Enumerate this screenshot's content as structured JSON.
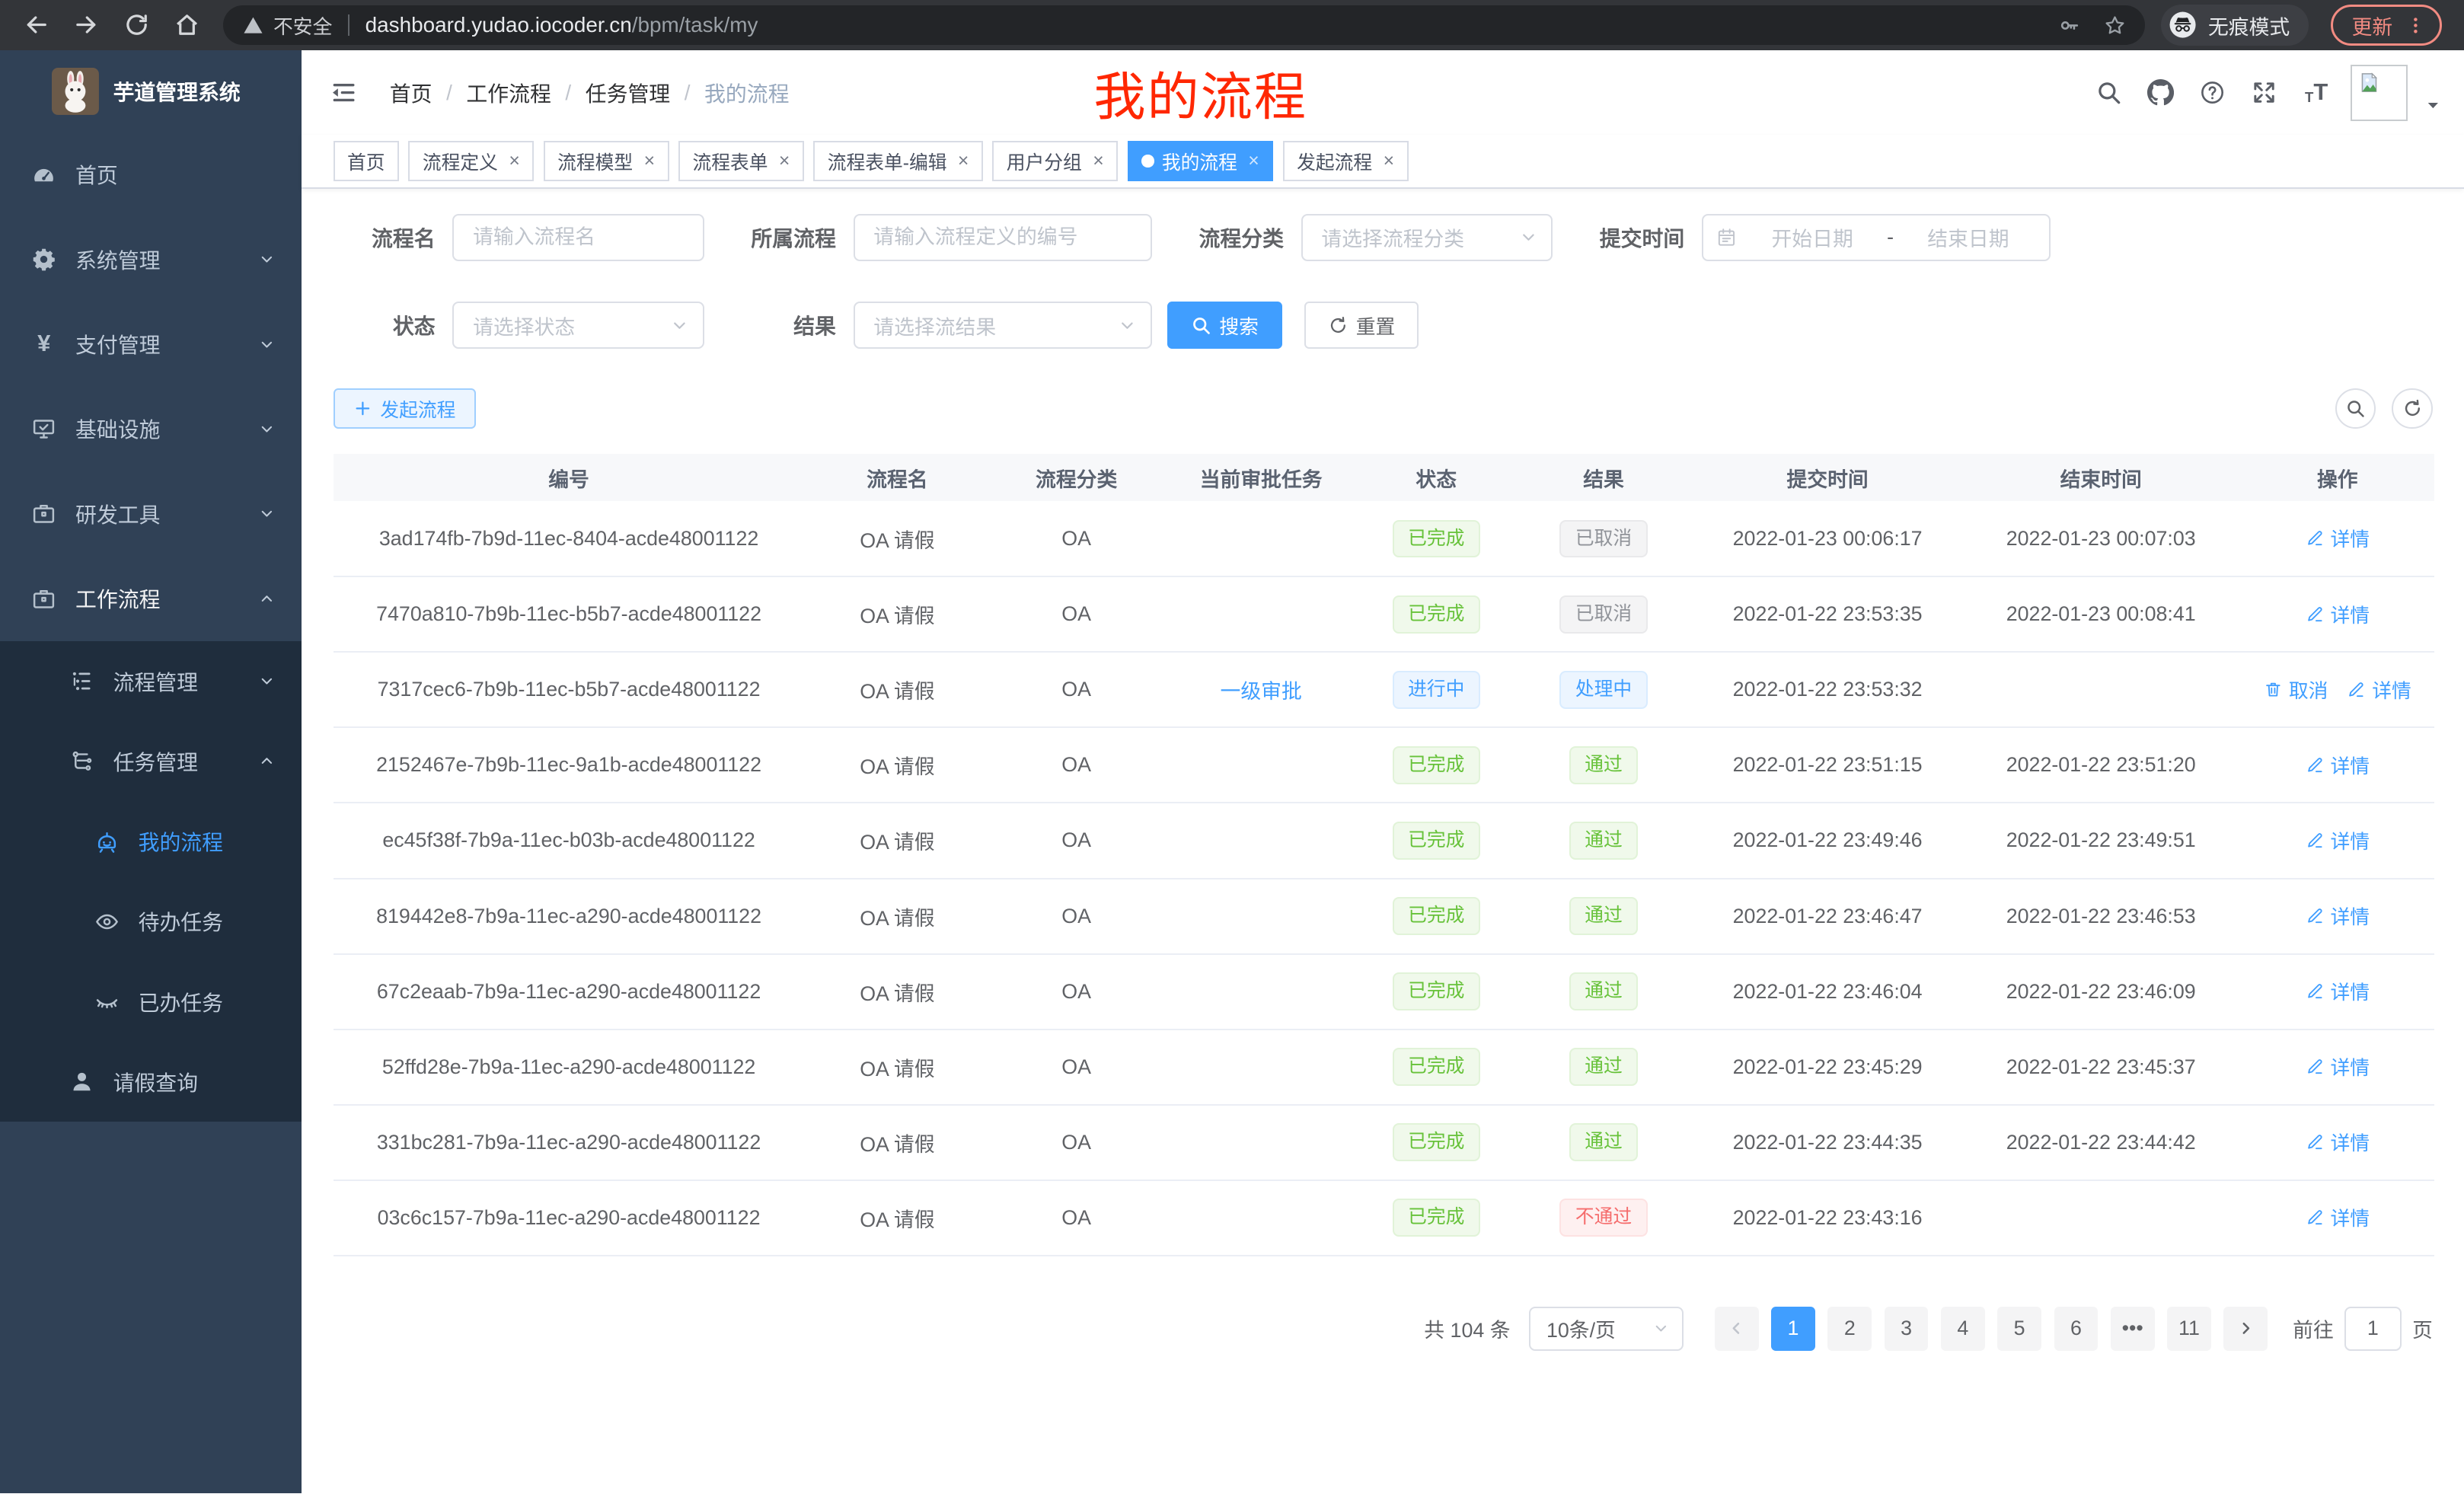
{
  "browser": {
    "security_label": "不安全",
    "url_host": "dashboard.yudao.iocoder.cn",
    "url_path": "/bpm/task/my",
    "incognito_label": "无痕模式",
    "update_label": "更新"
  },
  "sidebar": {
    "app_title": "芋道管理系统",
    "menu": [
      {
        "key": "home",
        "label": "首页",
        "icon": "gauge",
        "level": 1
      },
      {
        "key": "system",
        "label": "系统管理",
        "icon": "gear",
        "level": 1,
        "chevron": "down"
      },
      {
        "key": "payment",
        "label": "支付管理",
        "icon": "yen",
        "level": 1,
        "chevron": "down"
      },
      {
        "key": "infrastructure",
        "label": "基础设施",
        "icon": "monitor",
        "level": 1,
        "chevron": "down"
      },
      {
        "key": "dev-tools",
        "label": "研发工具",
        "icon": "toolbox",
        "level": 1,
        "chevron": "down"
      },
      {
        "key": "workflow",
        "label": "工作流程",
        "icon": "toolbox",
        "level": 1,
        "chevron": "up",
        "active_parent": true
      },
      {
        "key": "process-mgmt",
        "label": "流程管理",
        "icon": "list",
        "level": 2,
        "chevron": "down",
        "submenu": true
      },
      {
        "key": "task-mgmt",
        "label": "任务管理",
        "icon": "flow",
        "level": 2,
        "chevron": "up",
        "submenu": true
      },
      {
        "key": "my-process",
        "label": "我的流程",
        "icon": "robot",
        "level": 3,
        "active": true,
        "submenu": true
      },
      {
        "key": "todo-tasks",
        "label": "待办任务",
        "icon": "eye",
        "level": 3,
        "submenu": true
      },
      {
        "key": "done-tasks",
        "label": "已办任务",
        "icon": "eye-closed",
        "level": 3,
        "submenu": true
      },
      {
        "key": "leave-query",
        "label": "请假查询",
        "icon": "user",
        "level": 2,
        "submenu": true
      }
    ]
  },
  "header": {
    "breadcrumb": [
      "首页",
      "工作流程",
      "任务管理",
      "我的流程"
    ],
    "annotation": "我的流程"
  },
  "tabs": [
    {
      "key": "home",
      "label": "首页",
      "closable": false,
      "active": false
    },
    {
      "key": "process-definition",
      "label": "流程定义",
      "closable": true,
      "active": false
    },
    {
      "key": "process-model",
      "label": "流程模型",
      "closable": true,
      "active": false
    },
    {
      "key": "process-form",
      "label": "流程表单",
      "closable": true,
      "active": false
    },
    {
      "key": "process-form-edit",
      "label": "流程表单-编辑",
      "closable": true,
      "active": false
    },
    {
      "key": "user-group",
      "label": "用户分组",
      "closable": true,
      "active": false
    },
    {
      "key": "my-process",
      "label": "我的流程",
      "closable": true,
      "active": true
    },
    {
      "key": "start-process",
      "label": "发起流程",
      "closable": true,
      "active": false
    }
  ],
  "filters": {
    "name": {
      "label": "流程名",
      "placeholder": "请输入流程名"
    },
    "process": {
      "label": "所属流程",
      "placeholder": "请输入流程定义的编号"
    },
    "category": {
      "label": "流程分类",
      "placeholder": "请选择流程分类"
    },
    "submit_time": {
      "label": "提交时间",
      "start_placeholder": "开始日期",
      "separator": "-",
      "end_placeholder": "结束日期"
    },
    "status": {
      "label": "状态",
      "placeholder": "请选择状态"
    },
    "result": {
      "label": "结果",
      "placeholder": "请选择流结果"
    },
    "search_button": "搜索",
    "reset_button": "重置"
  },
  "toolbar": {
    "create_button": "发起流程"
  },
  "table": {
    "columns": [
      "编号",
      "流程名",
      "流程分类",
      "当前审批任务",
      "状态",
      "结果",
      "提交时间",
      "结束时间",
      "操作"
    ],
    "action_labels": {
      "detail": "详情",
      "cancel": "取消"
    },
    "rows": [
      {
        "id": "3ad174fb-7b9d-11ec-8404-acde48001122",
        "name": "OA 请假",
        "category": "OA",
        "task": "",
        "status": {
          "text": "已完成",
          "type": "success"
        },
        "result": {
          "text": "已取消",
          "type": "info"
        },
        "submit_time": "2022-01-23 00:06:17",
        "end_time": "2022-01-23 00:07:03",
        "actions": [
          "detail"
        ]
      },
      {
        "id": "7470a810-7b9b-11ec-b5b7-acde48001122",
        "name": "OA 请假",
        "category": "OA",
        "task": "",
        "status": {
          "text": "已完成",
          "type": "success"
        },
        "result": {
          "text": "已取消",
          "type": "info"
        },
        "submit_time": "2022-01-22 23:53:35",
        "end_time": "2022-01-23 00:08:41",
        "actions": [
          "detail"
        ]
      },
      {
        "id": "7317cec6-7b9b-11ec-b5b7-acde48001122",
        "name": "OA 请假",
        "category": "OA",
        "task": "一级审批",
        "status": {
          "text": "进行中",
          "type": "primary"
        },
        "result": {
          "text": "处理中",
          "type": "primary"
        },
        "submit_time": "2022-01-22 23:53:32",
        "end_time": "",
        "actions": [
          "cancel",
          "detail"
        ]
      },
      {
        "id": "2152467e-7b9b-11ec-9a1b-acde48001122",
        "name": "OA 请假",
        "category": "OA",
        "task": "",
        "status": {
          "text": "已完成",
          "type": "success"
        },
        "result": {
          "text": "通过",
          "type": "success"
        },
        "submit_time": "2022-01-22 23:51:15",
        "end_time": "2022-01-22 23:51:20",
        "actions": [
          "detail"
        ]
      },
      {
        "id": "ec45f38f-7b9a-11ec-b03b-acde48001122",
        "name": "OA 请假",
        "category": "OA",
        "task": "",
        "status": {
          "text": "已完成",
          "type": "success"
        },
        "result": {
          "text": "通过",
          "type": "success"
        },
        "submit_time": "2022-01-22 23:49:46",
        "end_time": "2022-01-22 23:49:51",
        "actions": [
          "detail"
        ]
      },
      {
        "id": "819442e8-7b9a-11ec-a290-acde48001122",
        "name": "OA 请假",
        "category": "OA",
        "task": "",
        "status": {
          "text": "已完成",
          "type": "success"
        },
        "result": {
          "text": "通过",
          "type": "success"
        },
        "submit_time": "2022-01-22 23:46:47",
        "end_time": "2022-01-22 23:46:53",
        "actions": [
          "detail"
        ]
      },
      {
        "id": "67c2eaab-7b9a-11ec-a290-acde48001122",
        "name": "OA 请假",
        "category": "OA",
        "task": "",
        "status": {
          "text": "已完成",
          "type": "success"
        },
        "result": {
          "text": "通过",
          "type": "success"
        },
        "submit_time": "2022-01-22 23:46:04",
        "end_time": "2022-01-22 23:46:09",
        "actions": [
          "detail"
        ]
      },
      {
        "id": "52ffd28e-7b9a-11ec-a290-acde48001122",
        "name": "OA 请假",
        "category": "OA",
        "task": "",
        "status": {
          "text": "已完成",
          "type": "success"
        },
        "result": {
          "text": "通过",
          "type": "success"
        },
        "submit_time": "2022-01-22 23:45:29",
        "end_time": "2022-01-22 23:45:37",
        "actions": [
          "detail"
        ]
      },
      {
        "id": "331bc281-7b9a-11ec-a290-acde48001122",
        "name": "OA 请假",
        "category": "OA",
        "task": "",
        "status": {
          "text": "已完成",
          "type": "success"
        },
        "result": {
          "text": "通过",
          "type": "success"
        },
        "submit_time": "2022-01-22 23:44:35",
        "end_time": "2022-01-22 23:44:42",
        "actions": [
          "detail"
        ]
      },
      {
        "id": "03c6c157-7b9a-11ec-a290-acde48001122",
        "name": "OA 请假",
        "category": "OA",
        "task": "",
        "status": {
          "text": "已完成",
          "type": "success"
        },
        "result": {
          "text": "不通过",
          "type": "danger"
        },
        "submit_time": "2022-01-22 23:43:16",
        "end_time": "",
        "actions": [
          "detail"
        ]
      }
    ]
  },
  "pagination": {
    "total": "共 104 条",
    "page_size": "10条/页",
    "pages": [
      "1",
      "2",
      "3",
      "4",
      "5",
      "6",
      "•••",
      "11"
    ],
    "active_page": "1",
    "goto_prefix": "前往",
    "goto_value": "1",
    "goto_suffix": "页"
  },
  "colors": {
    "primary": "#409eff",
    "success": "#67c23a",
    "info": "#909399",
    "danger": "#f56c6c",
    "sidebar_bg": "#304156",
    "submenu_bg": "#1f2d3d",
    "annotation_red": "#ff2702"
  }
}
